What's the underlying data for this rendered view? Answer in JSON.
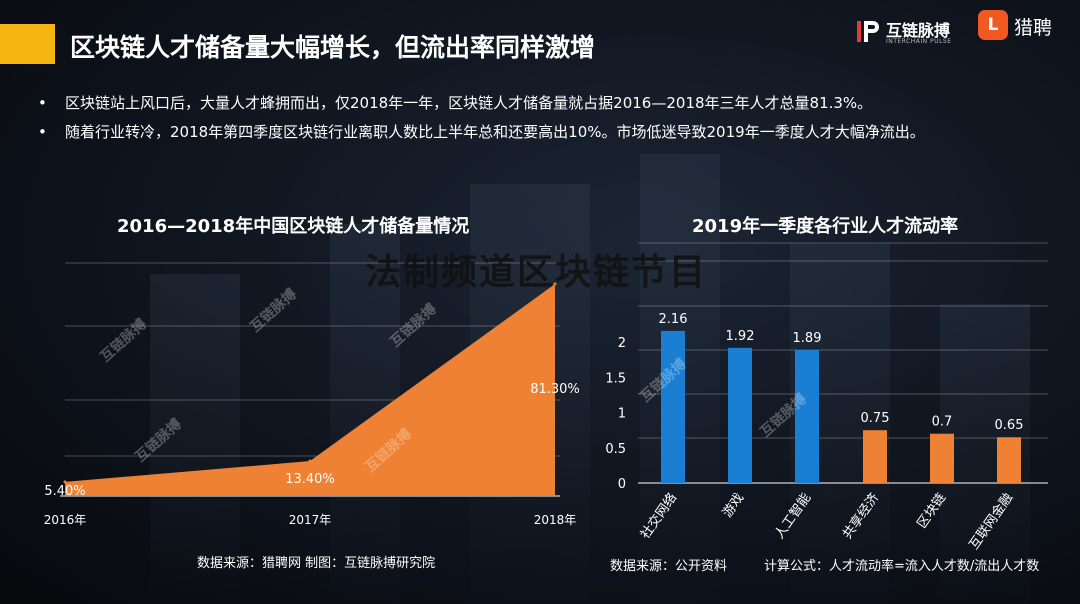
{
  "header": {
    "title": "区块链人才储备量大幅增长，但流出率同样激增",
    "logo_hlmb_name": "互链脉搏",
    "logo_hlmb_sub": "INTERCHAIN PULSE",
    "logo_lp_mark": "L",
    "logo_lp_name": "猎聘"
  },
  "bullets": [
    "区块链站上风口后，大量人才蜂拥而出，仅2018年一年，区块链人才储备量就占据2016—2018年三年人才总量81.3%。",
    "随着行业转冷，2018年第四季度区块链行业离职人数比上半年总和还要高出10%。市场低迷导致2019年一季度人才大幅净流出。"
  ],
  "overlay_text": "法制频道区块链节目",
  "watermark": "互链脉搏",
  "chart_data": [
    {
      "type": "area",
      "title": "2016—2018年中国区块链人才储备量情况",
      "categories": [
        "2016年",
        "2017年",
        "2018年"
      ],
      "values": [
        5.4,
        13.4,
        81.3
      ],
      "data_labels": [
        "5.40%",
        "13.40%",
        "81.30%"
      ],
      "color": "#ee8133",
      "grid": true,
      "source": "数据来源：猎聘网 制图：互链脉搏研究院"
    },
    {
      "type": "bar",
      "title": "2019年一季度各行业人才流动率",
      "categories": [
        "社交网络",
        "游戏",
        "人工智能",
        "共享经济",
        "区块链",
        "互联网金融"
      ],
      "values": [
        2.16,
        1.92,
        1.89,
        0.75,
        0.7,
        0.65
      ],
      "data_labels": [
        "2.16",
        "1.92",
        "1.89",
        "0.75",
        "0.7",
        "0.65"
      ],
      "colors": [
        "#1a7fd3",
        "#1a7fd3",
        "#1a7fd3",
        "#ee8133",
        "#ee8133",
        "#ee8133"
      ],
      "ylim": [
        0,
        2.5
      ],
      "yticks": [
        "0",
        "0.5",
        "1",
        "1.5",
        "2"
      ],
      "grid": true,
      "source": "数据来源：公开资料",
      "formula": "计算公式：人才流动率=流入人才数/流出人才数"
    }
  ]
}
